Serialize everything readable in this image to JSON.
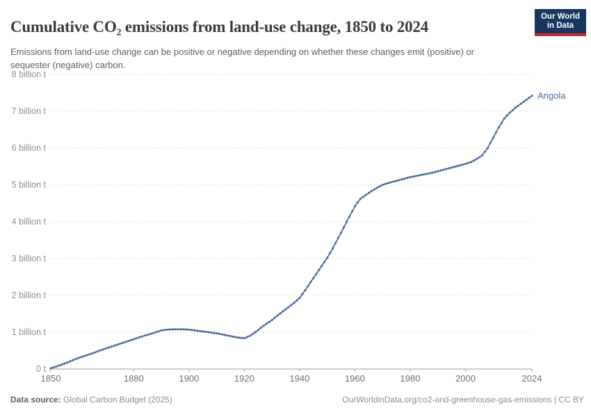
{
  "header": {
    "title": "Cumulative CO₂ emissions from land-use change, 1850 to 2024",
    "subtitle": "Emissions from land-use change can be positive or negative depending on whether these changes emit (positive) or sequester (negative) carbon."
  },
  "logo": {
    "line1": "Our World",
    "line2": "in Data",
    "bg_color": "#18375f",
    "accent_color": "#bc3028"
  },
  "footer": {
    "source_label": "Data source:",
    "source_value": " Global Carbon Budget (2025)",
    "link": "OurWorldinData.org/co2-and-greenhouse-gas-emissions | CC BY"
  },
  "colors": {
    "line": "#4c6a9c",
    "grid": "#dedede",
    "axis": "#9e9e9e",
    "y_tick_text": "#8f8f8f",
    "x_tick_text": "#6e6e6e"
  },
  "chart_data": {
    "type": "line",
    "title": "Cumulative CO₂ emissions from land-use change, 1850 to 2024",
    "xlabel": "",
    "ylabel": "",
    "unit": "billion t",
    "xlim": [
      1850,
      2024
    ],
    "ylim": [
      0,
      8
    ],
    "grid": "horizontal-dashed",
    "legend_position": "end-of-line-label",
    "x_ticks": [
      {
        "v": 1850,
        "label": "1850"
      },
      {
        "v": 1880,
        "label": "1880"
      },
      {
        "v": 1900,
        "label": "1900"
      },
      {
        "v": 1920,
        "label": "1920"
      },
      {
        "v": 1940,
        "label": "1940"
      },
      {
        "v": 1960,
        "label": "1960"
      },
      {
        "v": 1980,
        "label": "1980"
      },
      {
        "v": 2000,
        "label": "2000"
      },
      {
        "v": 2024,
        "label": "2024"
      }
    ],
    "y_ticks": [
      {
        "v": 0,
        "label": "0 t"
      },
      {
        "v": 1,
        "label": "1 billion t"
      },
      {
        "v": 2,
        "label": "2 billion t"
      },
      {
        "v": 3,
        "label": "3 billion t"
      },
      {
        "v": 4,
        "label": "4 billion t"
      },
      {
        "v": 5,
        "label": "5 billion t"
      },
      {
        "v": 6,
        "label": "6 billion t"
      },
      {
        "v": 7,
        "label": "7 billion t"
      },
      {
        "v": 8,
        "label": "8 billion t"
      }
    ],
    "series": [
      {
        "name": "Angola",
        "color": "#4c6a9c",
        "x": [
          1850,
          1852,
          1854,
          1856,
          1858,
          1860,
          1862,
          1864,
          1866,
          1868,
          1870,
          1872,
          1874,
          1876,
          1878,
          1880,
          1882,
          1884,
          1886,
          1888,
          1890,
          1892,
          1894,
          1896,
          1898,
          1900,
          1902,
          1904,
          1906,
          1908,
          1910,
          1912,
          1914,
          1916,
          1918,
          1920,
          1922,
          1924,
          1926,
          1928,
          1930,
          1932,
          1934,
          1936,
          1938,
          1940,
          1942,
          1944,
          1946,
          1948,
          1950,
          1952,
          1954,
          1956,
          1958,
          1960,
          1962,
          1964,
          1966,
          1968,
          1970,
          1972,
          1974,
          1976,
          1978,
          1980,
          1982,
          1984,
          1986,
          1988,
          1990,
          1992,
          1994,
          1996,
          1998,
          2000,
          2002,
          2004,
          2006,
          2008,
          2010,
          2012,
          2014,
          2016,
          2018,
          2020,
          2022,
          2024
        ],
        "y": [
          0.02,
          0.07,
          0.12,
          0.18,
          0.24,
          0.3,
          0.35,
          0.4,
          0.45,
          0.51,
          0.56,
          0.61,
          0.66,
          0.71,
          0.76,
          0.81,
          0.86,
          0.91,
          0.95,
          1.0,
          1.05,
          1.07,
          1.08,
          1.08,
          1.08,
          1.07,
          1.05,
          1.03,
          1.01,
          0.99,
          0.97,
          0.94,
          0.91,
          0.88,
          0.85,
          0.84,
          0.9,
          1.0,
          1.12,
          1.23,
          1.33,
          1.45,
          1.57,
          1.68,
          1.8,
          1.93,
          2.14,
          2.36,
          2.58,
          2.8,
          3.02,
          3.28,
          3.56,
          3.85,
          4.14,
          4.42,
          4.62,
          4.73,
          4.83,
          4.92,
          5.0,
          5.05,
          5.09,
          5.13,
          5.17,
          5.21,
          5.24,
          5.27,
          5.3,
          5.33,
          5.37,
          5.41,
          5.45,
          5.49,
          5.53,
          5.57,
          5.62,
          5.7,
          5.8,
          6.0,
          6.28,
          6.56,
          6.8,
          6.96,
          7.09,
          7.2,
          7.31,
          7.42
        ]
      }
    ]
  }
}
